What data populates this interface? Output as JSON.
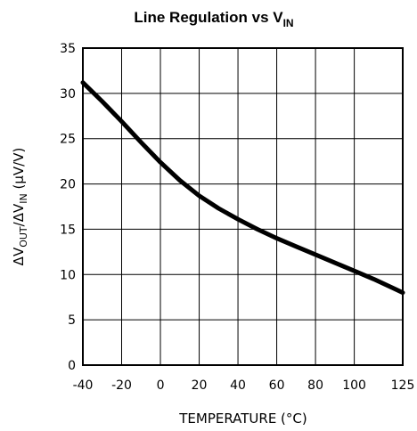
{
  "chart_data": {
    "type": "line",
    "title": "Line Regulation vs V",
    "title_subscript": "IN",
    "xlabel": "TEMPERATURE (°C)",
    "ylabel": {
      "prefix": "ΔV",
      "sub1": "OUT",
      "mid": "/ΔV",
      "sub2": "IN",
      "units": " (μV/V)"
    },
    "xlim": [
      -40,
      125
    ],
    "ylim": [
      0,
      35
    ],
    "x_ticks": [
      -40,
      -20,
      0,
      20,
      40,
      60,
      80,
      100,
      125
    ],
    "x_tick_labels": [
      "-40",
      "-20",
      "0",
      "20",
      "40",
      "60",
      "80",
      "100",
      "125"
    ],
    "y_ticks": [
      0,
      5,
      10,
      15,
      20,
      25,
      30,
      35
    ],
    "y_tick_labels": [
      "0",
      "5",
      "10",
      "15",
      "20",
      "25",
      "30",
      "35"
    ],
    "grid": true,
    "series": [
      {
        "x": [
          -40,
          -30,
          -20,
          -10,
          0,
          10,
          20,
          30,
          40,
          50,
          60,
          70,
          80,
          90,
          100,
          110,
          120,
          125
        ],
        "y": [
          31.2,
          29.1,
          26.9,
          24.6,
          22.4,
          20.4,
          18.7,
          17.3,
          16.1,
          15.0,
          14.0,
          13.1,
          12.2,
          11.3,
          10.4,
          9.5,
          8.5,
          8.0
        ]
      }
    ]
  }
}
